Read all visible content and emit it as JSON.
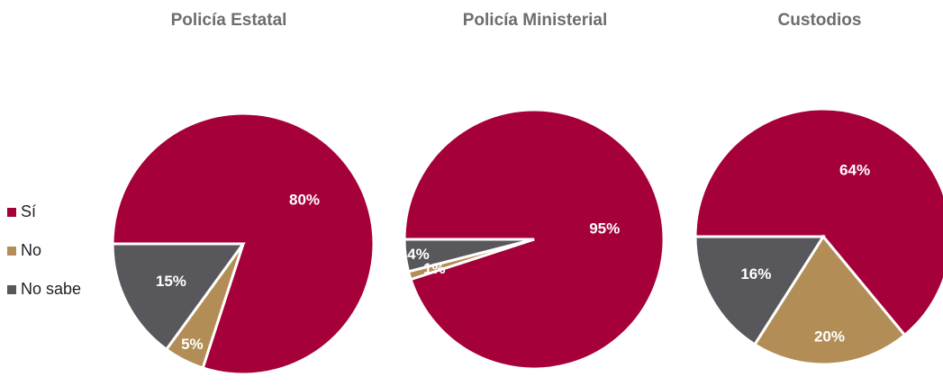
{
  "colors": {
    "si": "#a6003a",
    "no": "#b28d56",
    "no_sabe": "#58585c"
  },
  "legend": [
    {
      "label": "Sí",
      "color": "#a6003a"
    },
    {
      "label": "No",
      "color": "#b28d56"
    },
    {
      "label": "No sabe",
      "color": "#58585c"
    }
  ],
  "chart_data": [
    {
      "type": "pie",
      "title": "Policía Estatal",
      "categories": [
        "Sí",
        "No",
        "No sabe"
      ],
      "values": [
        80,
        5,
        15
      ],
      "labels": [
        "80%",
        "5%",
        "15%"
      ]
    },
    {
      "type": "pie",
      "title": "Policía Ministerial",
      "categories": [
        "Sí",
        "No",
        "No sabe"
      ],
      "values": [
        95,
        1,
        4
      ],
      "labels": [
        "95%",
        "1%",
        "4%"
      ]
    },
    {
      "type": "pie",
      "title": "Custodios",
      "categories": [
        "Sí",
        "No",
        "No sabe"
      ],
      "values": [
        64,
        20,
        16
      ],
      "labels": [
        "64%",
        "20%",
        "16%"
      ]
    }
  ]
}
